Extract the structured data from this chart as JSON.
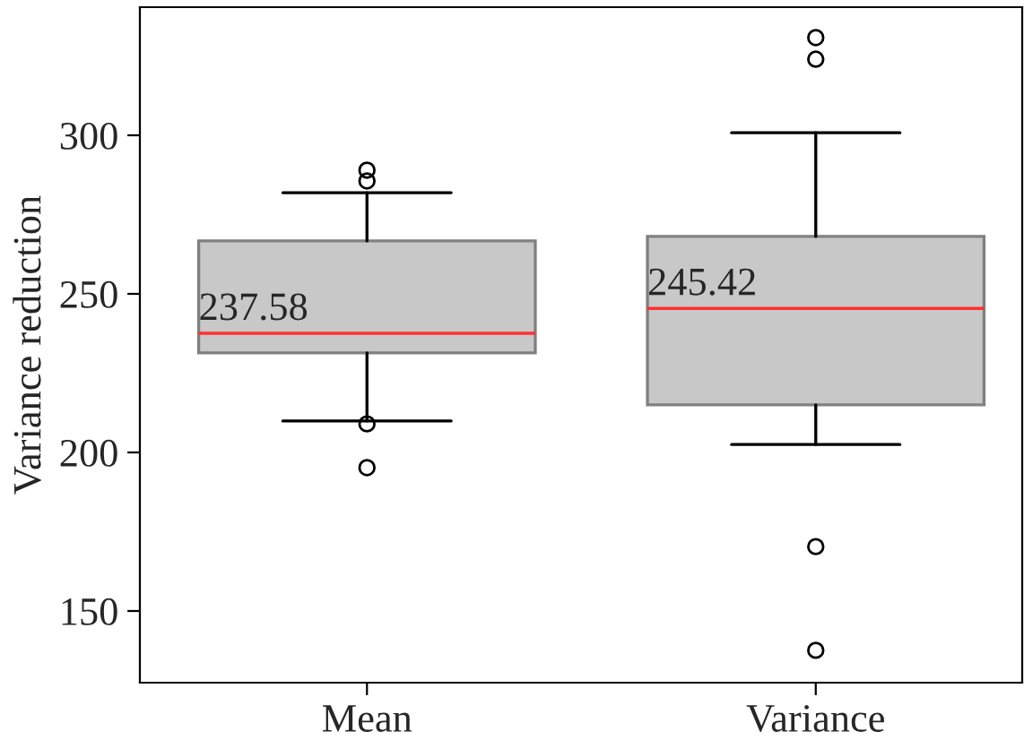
{
  "chart_data": {
    "type": "box",
    "ylabel": "Variance reduction",
    "categories": [
      "Mean",
      "Variance"
    ],
    "boxes": [
      {
        "low": 209.9,
        "q1": 231.4,
        "median": 237.58,
        "q3": 266.7,
        "high": 281.9,
        "outliers": [
          289.0,
          285.6,
          209.0,
          195.2
        ]
      },
      {
        "low": 202.5,
        "q1": 215.0,
        "median": 245.42,
        "q3": 268.1,
        "high": 300.8,
        "outliers": [
          330.8,
          324.0,
          170.3,
          137.6
        ]
      }
    ],
    "color": "#c8c8c8",
    "annotations": [
      {
        "text": "237.58",
        "x": "Mean",
        "y": 237.58
      },
      {
        "text": "245.42",
        "x": "Variance",
        "y": 245.42
      }
    ],
    "ylim": [
      127.4,
      340.4
    ],
    "yticks": [
      150,
      200,
      250,
      300
    ],
    "grid": false
  }
}
